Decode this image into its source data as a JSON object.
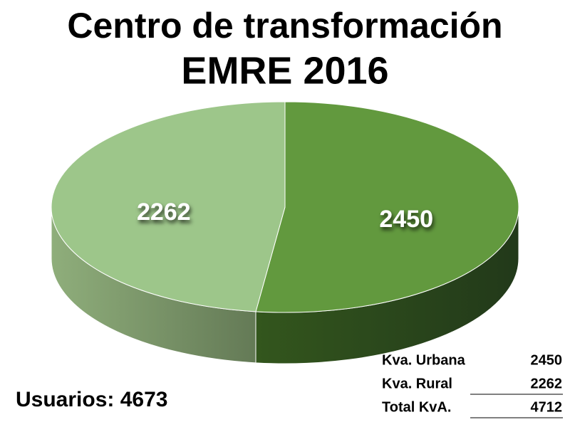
{
  "chart_data": {
    "type": "pie",
    "title": "Centro de transformación",
    "subtitle": "EMRE 2016",
    "values": [
      2450,
      2262
    ],
    "colors": [
      "#62993e",
      "#9dc68a"
    ],
    "annotation": "Usuarios: 4673"
  },
  "table": {
    "rows": [
      {
        "label": "Kva. Urbana",
        "value": 2450
      },
      {
        "label": "Kva. Rural",
        "value": 2262
      },
      {
        "label": "Total KvA.",
        "value": 4712
      }
    ]
  }
}
